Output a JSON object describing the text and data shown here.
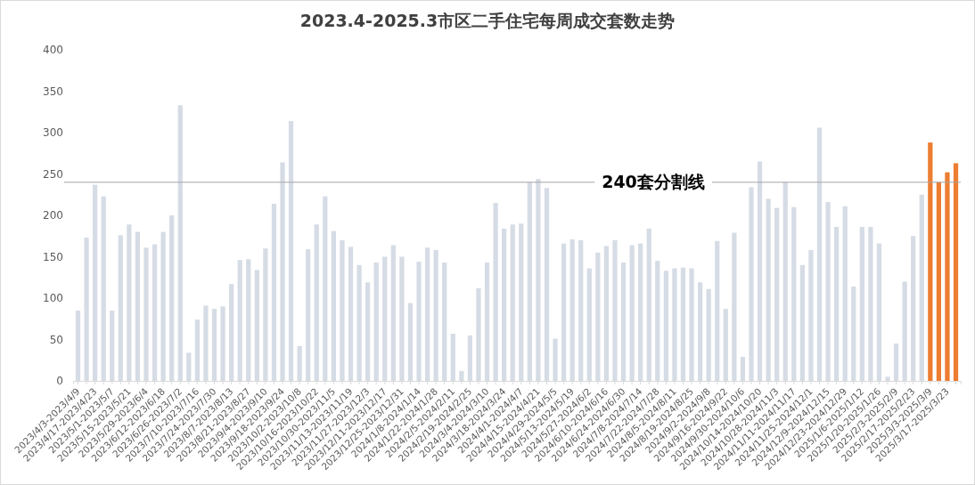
{
  "chart_data": {
    "type": "bar",
    "title": "2023.4-2025.3市区二手住宅每周成交套数走势",
    "categories": [
      "2023/4/3-2023/4/9",
      null,
      "2023/4/17-2023/4/23",
      null,
      "2023/5/1-2023/5/7",
      null,
      "2023/5/15-2023/5/21",
      null,
      "2023/5/29-2023/6/4",
      null,
      "2023/6/12-2023/6/18",
      null,
      "2023/6/26-2023/7/2",
      null,
      "2023/7/10-2023/7/16",
      null,
      "2023/7/24-2023/7/30",
      null,
      "2023/8/7-2023/8/13",
      null,
      "2023/8/21-2023/8/27",
      null,
      "2023/9/4-2023/9/10",
      null,
      "2023/9/18-2023/9/24",
      null,
      "2023/10/2-2023/10/8",
      null,
      "2023/10/16-2023/10/22",
      null,
      "2023/10/30-2023/11/5",
      null,
      "2023/11/13-2023/11/19",
      null,
      "2023/11/27-2023/12/3",
      null,
      "2023/12/11-2023/12/17",
      null,
      "2023/12/25-2023/12/31",
      null,
      "2024/1/8-2024/1/14",
      null,
      "2024/1/22-2024/1/28",
      null,
      "2024/2/5-2024/2/11",
      null,
      "2024/2/19-2024/2/25",
      null,
      "2024/3/4-2024/3/10",
      null,
      "2024/3/18-2024/3/24",
      null,
      "2024/4/1-2024/4/7",
      null,
      "2024/4/15-2024/4/21",
      null,
      "2024/4/29-2024/5/5",
      null,
      "2024/5/13-2024/5/19",
      null,
      "2024/5/27-2024/6/2",
      null,
      "2024/6/10-2024/6/16",
      null,
      "2024/6/24-2024/6/30",
      null,
      "2024/7/8-2024/7/14",
      null,
      "2024/7/22-2024/7/28",
      null,
      "2024/8/5-2024/8/11",
      null,
      "2024/8/19-2024/8/25",
      null,
      "2024/9/2-2024/9/8",
      null,
      "2024/9/16-2024/9/22",
      null,
      "2024/9/30-2024/10/6",
      null,
      "2024/10/14-2024/10/20",
      null,
      "2024/10/28-2024/11/3",
      null,
      "2024/11/11-2024/11/17",
      null,
      "2024/11/25-2024/12/1",
      null,
      "2024/12/9-2024/12/15",
      null,
      "2024/12/23-2024/12/29",
      null,
      "2025/1/6-2025/1/12",
      null,
      "2025/1/20-2025/1/26",
      null,
      "2025/2/3-2025/2/9",
      null,
      "2025/2/17-2025/2/23",
      null,
      "2025/3/3-2025/3/9",
      null,
      "2025/3/17-2025/3/23",
      null
    ],
    "values": [
      85,
      173,
      237,
      223,
      85,
      176,
      189,
      180,
      161,
      165,
      180,
      200,
      333,
      34,
      74,
      91,
      87,
      90,
      117,
      146,
      147,
      134,
      160,
      214,
      264,
      314,
      42,
      159,
      189,
      223,
      181,
      170,
      162,
      140,
      119,
      143,
      150,
      164,
      150,
      94,
      144,
      161,
      158,
      143,
      57,
      12,
      55,
      112,
      143,
      215,
      184,
      189,
      190,
      240,
      244,
      233,
      51,
      166,
      171,
      170,
      136,
      155,
      163,
      170,
      143,
      164,
      166,
      184,
      145,
      133,
      136,
      137,
      136,
      119,
      111,
      169,
      87,
      179,
      29,
      234,
      265,
      220,
      209,
      240,
      210,
      140,
      158,
      306,
      216,
      186,
      211,
      114,
      186,
      186,
      166,
      5,
      45,
      120,
      175,
      225,
      288,
      240,
      252,
      263
    ],
    "colors": [
      "#d6dce5",
      "#d6dce5",
      "#d6dce5",
      "#d6dce5",
      "#d6dce5",
      "#d6dce5",
      "#d6dce5",
      "#d6dce5",
      "#d6dce5",
      "#d6dce5",
      "#d6dce5",
      "#d6dce5",
      "#d6dce5",
      "#d6dce5",
      "#d6dce5",
      "#d6dce5",
      "#d6dce5",
      "#d6dce5",
      "#d6dce5",
      "#d6dce5",
      "#d6dce5",
      "#d6dce5",
      "#d6dce5",
      "#d6dce5",
      "#d6dce5",
      "#d6dce5",
      "#d6dce5",
      "#d6dce5",
      "#d6dce5",
      "#d6dce5",
      "#d6dce5",
      "#d6dce5",
      "#d6dce5",
      "#d6dce5",
      "#d6dce5",
      "#d6dce5",
      "#d6dce5",
      "#d6dce5",
      "#d6dce5",
      "#d6dce5",
      "#d6dce5",
      "#d6dce5",
      "#d6dce5",
      "#d6dce5",
      "#d6dce5",
      "#d6dce5",
      "#d6dce5",
      "#d6dce5",
      "#d6dce5",
      "#d6dce5",
      "#d6dce5",
      "#d6dce5",
      "#d6dce5",
      "#d6dce5",
      "#d6dce5",
      "#d6dce5",
      "#d6dce5",
      "#d6dce5",
      "#d6dce5",
      "#d6dce5",
      "#d6dce5",
      "#d6dce5",
      "#d6dce5",
      "#d6dce5",
      "#d6dce5",
      "#d6dce5",
      "#d6dce5",
      "#d6dce5",
      "#d6dce5",
      "#d6dce5",
      "#d6dce5",
      "#d6dce5",
      "#d6dce5",
      "#d6dce5",
      "#d6dce5",
      "#d6dce5",
      "#d6dce5",
      "#d6dce5",
      "#d6dce5",
      "#d6dce5",
      "#d6dce5",
      "#d6dce5",
      "#d6dce5",
      "#d6dce5",
      "#d6dce5",
      "#d6dce5",
      "#d6dce5",
      "#d6dce5",
      "#d6dce5",
      "#d6dce5",
      "#d6dce5",
      "#d6dce5",
      "#d6dce5",
      "#d6dce5",
      "#d6dce5",
      "#d6dce5",
      "#d6dce5",
      "#d6dce5",
      "#d6dce5",
      "#d6dce5",
      "#ed7d31",
      "#ed7d31",
      "#ed7d31",
      "#ed7d31"
    ],
    "ylim": [
      0,
      400
    ],
    "yticks": [
      0,
      50,
      100,
      150,
      200,
      250,
      300,
      350,
      400
    ],
    "ref_lines": [
      {
        "axis": "y",
        "value": 240,
        "label": "240套分割线",
        "color": "#a6a6a6"
      }
    ],
    "grid": false
  }
}
